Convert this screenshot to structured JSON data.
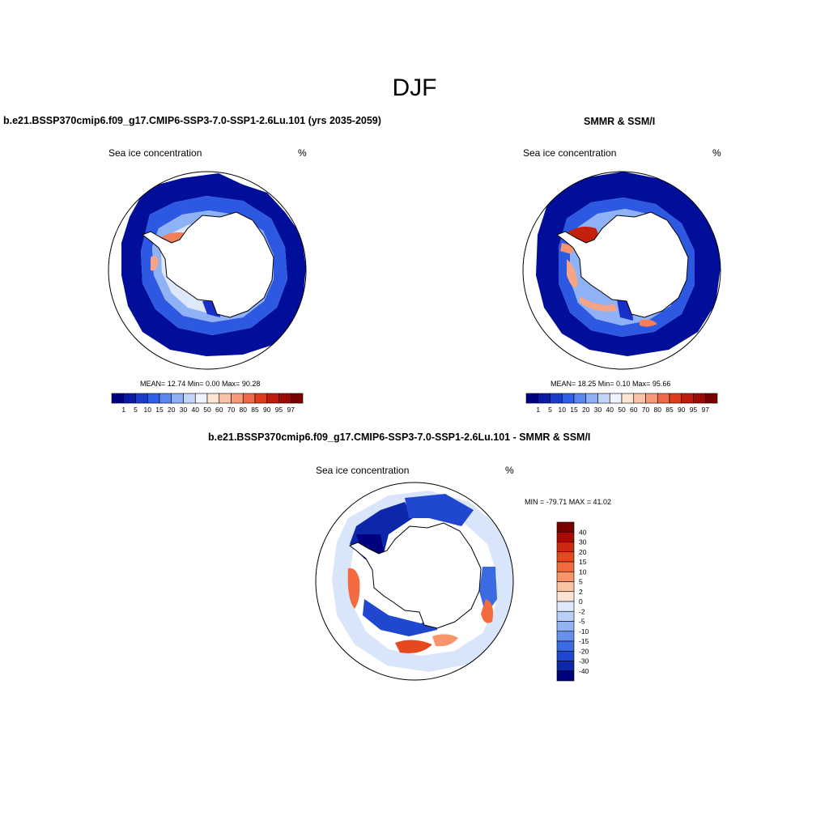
{
  "main_title": "DJF",
  "panels": [
    {
      "title": "b.e21.BSSP370cmip6.f09_g17.CMIP6-SSP3-7.0-SSP1-2.6Lu.101 (yrs 2035-2059)",
      "variable": "Sea ice concentration",
      "units": "%",
      "stats": "MEAN=  12.74  Min=   0.00  Max=  90.28"
    },
    {
      "title": "SMMR & SSM/I",
      "variable": "Sea ice concentration",
      "units": "%",
      "stats": "MEAN=  18.25  Min=   0.10  Max=  95.66"
    },
    {
      "title": "b.e21.BSSP370cmip6.f09_g17.CMIP6-SSP3-7.0-SSP1-2.6Lu.101 - SMMR & SSM/I",
      "variable": "Sea ice concentration",
      "units": "%",
      "stats": "MIN = -79.71 MAX =  41.02"
    }
  ],
  "chart_data": [
    {
      "type": "heatmap",
      "projection": "south polar stereographic",
      "field": "Sea ice concentration",
      "units": "%",
      "mean": 12.74,
      "min": 0.0,
      "max": 90.28,
      "colorbar": {
        "orientation": "horizontal",
        "tick_labels": [
          "1",
          "5",
          "10",
          "15",
          "20",
          "30",
          "40",
          "50",
          "60",
          "70",
          "80",
          "85",
          "90",
          "95",
          "97"
        ],
        "colors": [
          "#00007f",
          "#0a1aa8",
          "#1c3ccf",
          "#2f5fe8",
          "#5b86f0",
          "#8eaff5",
          "#c3d6fa",
          "#eef3ff",
          "#ffe4d2",
          "#fbc2a6",
          "#f59a7b",
          "#ee6a47",
          "#e03c1c",
          "#c01a0a",
          "#a00a05",
          "#7a0000"
        ]
      }
    },
    {
      "type": "heatmap",
      "projection": "south polar stereographic",
      "field": "Sea ice concentration",
      "units": "%",
      "mean": 18.25,
      "min": 0.1,
      "max": 95.66,
      "colorbar": {
        "orientation": "horizontal",
        "tick_labels": [
          "1",
          "5",
          "10",
          "15",
          "20",
          "30",
          "40",
          "50",
          "60",
          "70",
          "80",
          "85",
          "90",
          "95",
          "97"
        ],
        "colors": [
          "#00007f",
          "#0a1aa8",
          "#1c3ccf",
          "#2f5fe8",
          "#5b86f0",
          "#8eaff5",
          "#c3d6fa",
          "#eef3ff",
          "#ffe4d2",
          "#fbc2a6",
          "#f59a7b",
          "#ee6a47",
          "#e03c1c",
          "#c01a0a",
          "#a00a05",
          "#7a0000"
        ]
      }
    },
    {
      "type": "heatmap",
      "projection": "south polar stereographic",
      "field": "Sea ice concentration difference",
      "units": "%",
      "min": -79.71,
      "max": 41.02,
      "colorbar": {
        "orientation": "vertical",
        "tick_labels": [
          "40",
          "30",
          "20",
          "15",
          "10",
          "5",
          "2",
          "0",
          "-2",
          "-5",
          "-10",
          "-15",
          "-20",
          "-30",
          "-40"
        ],
        "colors": [
          "#7a0000",
          "#a60c05",
          "#cc2a0e",
          "#e8481f",
          "#f26a3e",
          "#f7946a",
          "#fbc3a4",
          "#fde3d3",
          "#dde9fb",
          "#b9cff7",
          "#93b2f2",
          "#6690ea",
          "#3c6ae0",
          "#1f47cf",
          "#0c27aa",
          "#00007f"
        ]
      }
    }
  ]
}
